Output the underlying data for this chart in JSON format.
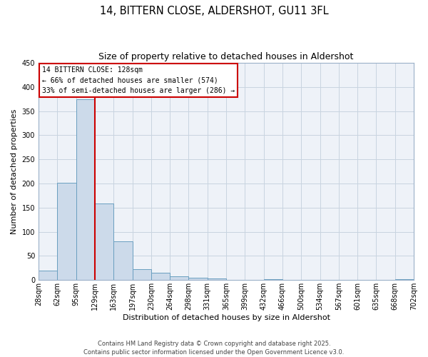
{
  "title_line1": "14, BITTERN CLOSE, ALDERSHOT, GU11 3FL",
  "title_line2": "Size of property relative to detached houses in Aldershot",
  "xlabel": "Distribution of detached houses by size in Aldershot",
  "ylabel": "Number of detached properties",
  "bar_values": [
    20,
    202,
    375,
    158,
    80,
    22,
    15,
    8,
    5,
    3,
    1,
    0,
    2,
    0,
    0,
    0,
    0,
    0,
    0,
    2
  ],
  "bar_labels": [
    "28sqm",
    "62sqm",
    "95sqm",
    "129sqm",
    "163sqm",
    "197sqm",
    "230sqm",
    "264sqm",
    "298sqm",
    "331sqm",
    "365sqm",
    "399sqm",
    "432sqm",
    "466sqm",
    "500sqm",
    "534sqm",
    "567sqm",
    "601sqm",
    "635sqm",
    "668sqm",
    "702sqm"
  ],
  "bar_color": "#ccdaea",
  "bar_edge_color": "#6a9fc0",
  "grid_color": "#c8d4e0",
  "background_color": "#eef2f8",
  "vline_color": "#cc0000",
  "ylim": [
    0,
    450
  ],
  "yticks": [
    0,
    50,
    100,
    150,
    200,
    250,
    300,
    350,
    400,
    450
  ],
  "annotation_title": "14 BITTERN CLOSE: 128sqm",
  "annotation_line2": "← 66% of detached houses are smaller (574)",
  "annotation_line3": "33% of semi-detached houses are larger (286) →",
  "annotation_box_color": "#cc0000",
  "footer_line1": "Contains HM Land Registry data © Crown copyright and database right 2025.",
  "footer_line2": "Contains public sector information licensed under the Open Government Licence v3.0.",
  "title1_fontsize": 10.5,
  "title2_fontsize": 9,
  "axis_label_fontsize": 8,
  "tick_fontsize": 7,
  "annotation_fontsize": 7,
  "footer_fontsize": 6
}
